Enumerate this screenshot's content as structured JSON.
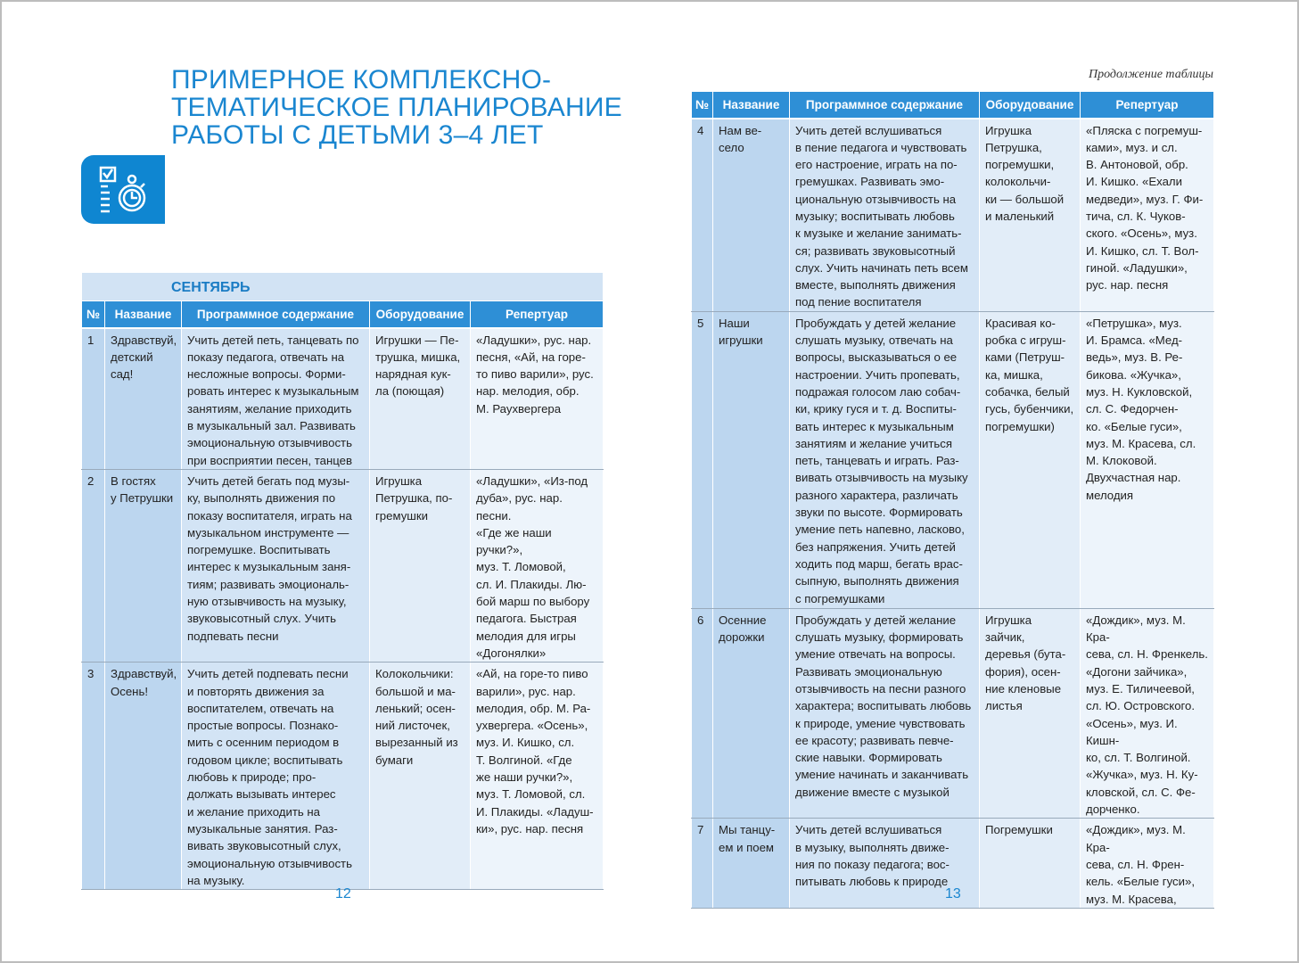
{
  "left_page": {
    "title": "ПРИМЕРНОЕ КОМПЛЕКСНО-\nТЕМАТИЧЕСКОЕ ПЛАНИРОВАНИЕ\nРАБОТЫ С ДЕТЬМИ 3–4 ЛЕТ",
    "icon": "checklist-stopwatch-icon",
    "month": "СЕНТЯБРЬ",
    "page_number": "12"
  },
  "right_page": {
    "continuation": "Продолжение таблицы",
    "page_number": "13"
  },
  "columns": [
    "№",
    "Название",
    "Программное содержание",
    "Оборудование",
    "Репертуар"
  ],
  "left_rows": [
    {
      "n": "1",
      "name": "Здравствуй,\nдетский\nсад!",
      "content": "Учить детей петь, танцевать по\nпоказу педагога, отвечать на\nнесложные вопросы. Форми-\nровать интерес к музыкальным\nзанятиям, желание приходить\nв музыкальный зал. Развивать\nэмоциональную отзывчивость\nпри восприятии песен, танцев",
      "equipment": "Игрушки — Пе-\nтрушка, мишка,\nнарядная кук-\nла (поющая)",
      "repertoire": "«Ладушки», рус. нар.\nпесня, «Ай, на горе-\nто пиво варили», рус.\nнар. мелодия, обр.\nМ. Раухвергера"
    },
    {
      "n": "2",
      "name": "В гостях\nу Петрушки",
      "content": "Учить детей бегать под музы-\nку, выполнять движения по\nпоказу воспитателя, играть на\nмузыкальном инструменте —\nпогремушке. Воспитывать\nинтерес к музыкальным заня-\nтиям; развивать эмоциональ-\nную отзывчивость на музыку,\nзвуковысотный слух. Учить\nподпевать песни",
      "equipment": "Игрушка\nПетрушка, по-\nгремушки",
      "repertoire": "«Ладушки», «Из-под\nдуба», рус. нар. песни.\n«Где же наши ручки?»,\nмуз. Т. Ломовой,\nсл. И. Плакиды. Лю-\nбой марш по выбору\nпедагога. Быстрая\nмелодия для игры\n«Догонялки»"
    },
    {
      "n": "3",
      "name": "Здравствуй,\nОсень!",
      "content": "Учить детей подпевать песни\nи повторять движения за\nвоспитателем, отвечать на\nпростые вопросы. Познако-\nмить с осенним периодом в\nгодовом цикле; воспитывать\nлюбовь к природе; про-\nдолжать вызывать интерес\nи желание приходить на\nмузыкальные занятия. Раз-\nвивать звуковысотный слух,\nэмоциональную отзывчивость\nна музыку.",
      "equipment": "Колокольчики:\nбольшой и ма-\nленький; осен-\nний листочек,\nвырезанный из\nбумаги",
      "repertoire": "«Ай, на горе-то пиво\nварили», рус. нар.\nмелодия, обр. М. Ра-\nухвергера. «Осень»,\nмуз. И. Кишко, сл.\nТ. Волгиной. «Где\nже наши ручки?»,\nмуз. Т. Ломовой, сл.\nИ. Плакиды. «Ладуш-\nки», рус. нар. песня"
    }
  ],
  "right_rows": [
    {
      "n": "4",
      "name": "Нам ве-\nсело",
      "content": "Учить детей вслушиваться\nв пение педагога и чувствовать\nего настроение, играть на по-\nгремушках. Развивать эмо-\nциональную отзывчивость на\nмузыку; воспитывать любовь\nк музыке и желание занимать-\nся; развивать звуковысотный\nслух. Учить начинать петь всем\nвместе, выполнять движения\nпод пение воспитателя",
      "equipment": "Игрушка\nПетрушка,\nпогремушки,\nколокольчи-\nки — большой\nи маленький",
      "repertoire": "«Пляска с погремуш-\nками», муз. и сл.\nВ. Антоновой, обр.\nИ. Кишко. «Ехали\nмедведи», муз. Г. Фи-\nтича, сл. К. Чуков-\nского. «Осень», муз.\nИ. Кишко, сл. Т. Вол-\nгиной. «Ладушки»,\nрус. нар. песня"
    },
    {
      "n": "5",
      "name": "Наши\nигрушки",
      "content": "Пробуждать у детей желание\nслушать музыку, отвечать на\nвопросы, высказываться о ее\nнастроении. Учить пропевать,\nподражая голосом лаю собач-\nки, крику гуся и т. д. Воспиты-\nвать интерес к музыкальным\nзанятиям и желание учиться\nпеть, танцевать и играть. Раз-\nвивать отзывчивость на музыку\nразного характера, различать\nзвуки по высоте. Формировать\nумение петь напевно, ласково,\nбез напряжения. Учить детей\nходить под марш, бегать врас-\nсыпную, выполнять движения\nс погремушками",
      "equipment": "Красивая ко-\nробка с игруш-\nками (Петруш-\nка, мишка,\nсобачка, белый\nгусь, бубенчики,\nпогремушки)",
      "repertoire": "«Петрушка», муз.\nИ. Брамса. «Мед-\nведь», муз. В. Ре-\nбикова. «Жучка»,\nмуз. Н. Кукловской,\nсл. С. Федорчен-\nко. «Белые гуси»,\nмуз. М. Красева, сл.\nМ. Клоковой.\nДвухчастная нар.\nмелодия"
    },
    {
      "n": "6",
      "name": "Осенние\nдорожки",
      "content": "Пробуждать у детей желание\nслушать музыку, формировать\nумение отвечать на вопросы.\nРазвивать эмоциональную\nотзывчивость на песни разного\nхарактера; воспитывать любовь\nк природе, умение чувствовать\nее красоту; развивать певче-\nские навыки. Формировать\nумение начинать и заканчивать\nдвижение вместе с музыкой",
      "equipment": "Игрушка\nзайчик,\nдеревья (бута-\nфория), осен-\nние кленовые\nлистья",
      "repertoire": "«Дождик», муз. М. Кра-\nсева, сл. Н. Френкель.\n«Догони зайчика»,\nмуз. Е. Тиличеевой,\nсл. Ю. Островского.\n«Осень», муз. И. Кишн-\nко, сл. Т. Волгиной.\n«Жучка», муз. Н. Ку-\nкловской, сл. С. Фе-\nдорченко."
    },
    {
      "n": "7",
      "name": "Мы танцу-\nем и поем",
      "content": "Учить детей вслушиваться\nв музыку, выполнять движе-\nния по показу педагога; вос-\nпитывать любовь к природе",
      "equipment": "Погремушки",
      "repertoire": "«Дождик», муз. М. Кра-\nсева, сл. Н. Френ-\nкель. «Белые гуси»,\nмуз. М. Красева,"
    }
  ],
  "colors": {
    "accent": "#1a86d0",
    "header_bg": "#2e8fd6",
    "month_bg": "#d2e3f4"
  }
}
